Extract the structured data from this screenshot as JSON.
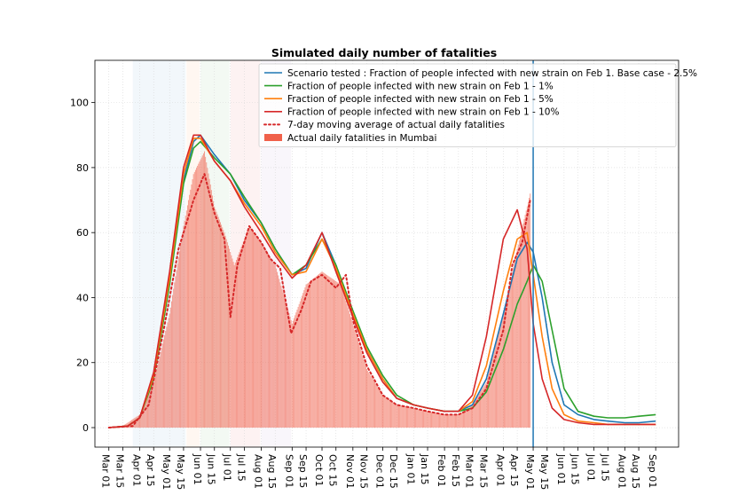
{
  "chart_data": {
    "type": "line",
    "title": "Simulated daily number of fatalities",
    "xlabel": "",
    "ylabel": "",
    "ylim": [
      -6,
      113
    ],
    "xlim": [
      "2020-02-16",
      "2021-09-24"
    ],
    "grid": true,
    "legend_position": "top-right",
    "x_ticks": [
      "Mar 01",
      "Mar 15",
      "Apr 01",
      "Apr 15",
      "May 01",
      "May 15",
      "Jun 01",
      "Jun 15",
      "Jul 01",
      "Jul 15",
      "Aug 01",
      "Aug 15",
      "Sep 01",
      "Sep 15",
      "Oct 01",
      "Oct 15",
      "Nov 01",
      "Nov 15",
      "Dec 01",
      "Dec 15",
      "Jan 01",
      "Jan 15",
      "Feb 01",
      "Feb 15",
      "Mar 01",
      "Mar 15",
      "Apr 01",
      "Apr 15",
      "May 01",
      "May 15",
      "Jun 01",
      "Jun 15",
      "Jul 01",
      "Jul 15",
      "Aug 01",
      "Aug 15",
      "Sep 01"
    ],
    "x_tick_dates": [
      "2020-03-01",
      "2020-03-15",
      "2020-04-01",
      "2020-04-15",
      "2020-05-01",
      "2020-05-15",
      "2020-06-01",
      "2020-06-15",
      "2020-07-01",
      "2020-07-15",
      "2020-08-01",
      "2020-08-15",
      "2020-09-01",
      "2020-09-15",
      "2020-10-01",
      "2020-10-15",
      "2020-11-01",
      "2020-11-15",
      "2020-12-01",
      "2020-12-15",
      "2021-01-01",
      "2021-01-15",
      "2021-02-01",
      "2021-02-15",
      "2021-03-01",
      "2021-03-15",
      "2021-04-01",
      "2021-04-15",
      "2021-05-01",
      "2021-05-15",
      "2021-06-01",
      "2021-06-15",
      "2021-07-01",
      "2021-07-15",
      "2021-08-01",
      "2021-08-15",
      "2021-09-01"
    ],
    "y_ticks": [
      0,
      20,
      40,
      60,
      80,
      100
    ],
    "vertical_line_date": "2021-05-01",
    "vertical_line_color": "#1f77b4",
    "shaded_bands": [
      {
        "start": "2020-03-25",
        "end": "2020-05-17",
        "color": "#1f77b4"
      },
      {
        "start": "2020-05-18",
        "end": "2020-05-31",
        "color": "#ff7f0e"
      },
      {
        "start": "2020-06-01",
        "end": "2020-06-30",
        "color": "#2ca02c"
      },
      {
        "start": "2020-07-01",
        "end": "2020-07-31",
        "color": "#d62728"
      },
      {
        "start": "2020-08-01",
        "end": "2020-08-31",
        "color": "#9467bd"
      }
    ],
    "series": [
      {
        "name": "Scenario tested : Fraction of people infected with new strain on Feb 1. Base case - 2.5%",
        "color": "#1f77b4",
        "style": "solid",
        "points": [
          [
            "2020-03-01",
            0
          ],
          [
            "2020-03-20",
            0.5
          ],
          [
            "2020-04-01",
            3
          ],
          [
            "2020-04-15",
            16
          ],
          [
            "2020-05-01",
            45
          ],
          [
            "2020-05-15",
            76
          ],
          [
            "2020-05-25",
            88
          ],
          [
            "2020-06-01",
            90
          ],
          [
            "2020-06-15",
            84
          ],
          [
            "2020-07-01",
            78
          ],
          [
            "2020-07-15",
            70
          ],
          [
            "2020-08-01",
            63
          ],
          [
            "2020-08-15",
            55
          ],
          [
            "2020-09-01",
            47
          ],
          [
            "2020-09-15",
            49
          ],
          [
            "2020-10-01",
            60
          ],
          [
            "2020-10-15",
            50
          ],
          [
            "2020-11-01",
            35
          ],
          [
            "2020-11-15",
            24
          ],
          [
            "2020-12-01",
            15
          ],
          [
            "2020-12-15",
            9
          ],
          [
            "2021-01-01",
            7
          ],
          [
            "2021-01-15",
            6
          ],
          [
            "2021-02-01",
            5
          ],
          [
            "2021-02-15",
            5
          ],
          [
            "2021-03-01",
            7
          ],
          [
            "2021-03-15",
            15
          ],
          [
            "2021-04-01",
            35
          ],
          [
            "2021-04-15",
            52
          ],
          [
            "2021-04-25",
            57
          ],
          [
            "2021-05-01",
            54
          ],
          [
            "2021-05-10",
            40
          ],
          [
            "2021-05-20",
            20
          ],
          [
            "2021-06-01",
            7
          ],
          [
            "2021-06-15",
            4
          ],
          [
            "2021-07-01",
            2.5
          ],
          [
            "2021-07-15",
            2
          ],
          [
            "2021-08-01",
            1.5
          ],
          [
            "2021-08-15",
            1.5
          ],
          [
            "2021-09-01",
            2
          ]
        ]
      },
      {
        "name": "Fraction of people infected with new strain on Feb 1 - 1%",
        "color": "#2ca02c",
        "style": "solid",
        "points": [
          [
            "2020-03-01",
            0
          ],
          [
            "2020-03-20",
            0.5
          ],
          [
            "2020-04-01",
            3
          ],
          [
            "2020-04-15",
            15
          ],
          [
            "2020-05-01",
            44
          ],
          [
            "2020-05-15",
            75
          ],
          [
            "2020-05-25",
            86
          ],
          [
            "2020-06-01",
            88
          ],
          [
            "2020-06-15",
            83
          ],
          [
            "2020-07-01",
            78
          ],
          [
            "2020-07-15",
            71
          ],
          [
            "2020-08-01",
            63
          ],
          [
            "2020-08-15",
            55
          ],
          [
            "2020-09-01",
            47
          ],
          [
            "2020-09-15",
            50
          ],
          [
            "2020-10-01",
            58
          ],
          [
            "2020-10-15",
            50
          ],
          [
            "2020-11-01",
            36
          ],
          [
            "2020-11-15",
            25
          ],
          [
            "2020-12-01",
            16
          ],
          [
            "2020-12-15",
            10
          ],
          [
            "2021-01-01",
            7
          ],
          [
            "2021-01-15",
            6
          ],
          [
            "2021-02-01",
            5
          ],
          [
            "2021-02-15",
            5
          ],
          [
            "2021-03-01",
            6
          ],
          [
            "2021-03-15",
            11
          ],
          [
            "2021-04-01",
            24
          ],
          [
            "2021-04-15",
            38
          ],
          [
            "2021-04-25",
            45
          ],
          [
            "2021-05-01",
            50
          ],
          [
            "2021-05-10",
            45
          ],
          [
            "2021-05-20",
            30
          ],
          [
            "2021-06-01",
            12
          ],
          [
            "2021-06-15",
            5
          ],
          [
            "2021-07-01",
            3.5
          ],
          [
            "2021-07-15",
            3
          ],
          [
            "2021-08-01",
            3
          ],
          [
            "2021-08-15",
            3.5
          ],
          [
            "2021-09-01",
            4
          ]
        ]
      },
      {
        "name": "Fraction of people infected with new strain on Feb 1 - 5%",
        "color": "#ff7f0e",
        "style": "solid",
        "points": [
          [
            "2020-03-01",
            0
          ],
          [
            "2020-03-20",
            0.5
          ],
          [
            "2020-04-01",
            3
          ],
          [
            "2020-04-15",
            16
          ],
          [
            "2020-05-01",
            46
          ],
          [
            "2020-05-15",
            78
          ],
          [
            "2020-05-25",
            89
          ],
          [
            "2020-06-01",
            89
          ],
          [
            "2020-06-15",
            82
          ],
          [
            "2020-07-01",
            76
          ],
          [
            "2020-07-15",
            69
          ],
          [
            "2020-08-01",
            62
          ],
          [
            "2020-08-15",
            54
          ],
          [
            "2020-09-01",
            47
          ],
          [
            "2020-09-15",
            48
          ],
          [
            "2020-10-01",
            58
          ],
          [
            "2020-10-15",
            49
          ],
          [
            "2020-11-01",
            35
          ],
          [
            "2020-11-15",
            24
          ],
          [
            "2020-12-01",
            15
          ],
          [
            "2020-12-15",
            9
          ],
          [
            "2021-01-01",
            7
          ],
          [
            "2021-01-15",
            6
          ],
          [
            "2021-02-01",
            5
          ],
          [
            "2021-02-15",
            5
          ],
          [
            "2021-03-01",
            8
          ],
          [
            "2021-03-15",
            19
          ],
          [
            "2021-04-01",
            42
          ],
          [
            "2021-04-15",
            58
          ],
          [
            "2021-04-25",
            60
          ],
          [
            "2021-05-01",
            47
          ],
          [
            "2021-05-10",
            28
          ],
          [
            "2021-05-20",
            12
          ],
          [
            "2021-06-01",
            4
          ],
          [
            "2021-06-15",
            2
          ],
          [
            "2021-07-01",
            1.5
          ],
          [
            "2021-07-15",
            1
          ],
          [
            "2021-08-01",
            1
          ],
          [
            "2021-08-15",
            1
          ],
          [
            "2021-09-01",
            1
          ]
        ]
      },
      {
        "name": "Fraction of people infected with new strain on Feb 1 - 10%",
        "color": "#d62728",
        "style": "solid",
        "points": [
          [
            "2020-03-01",
            0
          ],
          [
            "2020-03-20",
            0.5
          ],
          [
            "2020-04-01",
            3
          ],
          [
            "2020-04-15",
            17
          ],
          [
            "2020-05-01",
            48
          ],
          [
            "2020-05-15",
            80
          ],
          [
            "2020-05-25",
            90
          ],
          [
            "2020-06-01",
            90
          ],
          [
            "2020-06-15",
            82
          ],
          [
            "2020-07-01",
            76
          ],
          [
            "2020-07-15",
            68
          ],
          [
            "2020-08-01",
            60
          ],
          [
            "2020-08-15",
            53
          ],
          [
            "2020-09-01",
            46
          ],
          [
            "2020-09-15",
            50
          ],
          [
            "2020-10-01",
            60
          ],
          [
            "2020-10-15",
            48
          ],
          [
            "2020-11-01",
            34
          ],
          [
            "2020-11-15",
            23
          ],
          [
            "2020-12-01",
            14
          ],
          [
            "2020-12-15",
            9
          ],
          [
            "2021-01-01",
            7
          ],
          [
            "2021-01-15",
            6
          ],
          [
            "2021-02-01",
            5
          ],
          [
            "2021-02-15",
            5
          ],
          [
            "2021-03-01",
            10
          ],
          [
            "2021-03-15",
            28
          ],
          [
            "2021-04-01",
            58
          ],
          [
            "2021-04-15",
            67
          ],
          [
            "2021-04-25",
            55
          ],
          [
            "2021-05-01",
            32
          ],
          [
            "2021-05-10",
            15
          ],
          [
            "2021-05-20",
            6
          ],
          [
            "2021-06-01",
            2.5
          ],
          [
            "2021-06-15",
            1.5
          ],
          [
            "2021-07-01",
            1
          ],
          [
            "2021-07-15",
            1
          ],
          [
            "2021-08-01",
            1
          ],
          [
            "2021-08-15",
            1
          ],
          [
            "2021-09-01",
            1
          ]
        ]
      },
      {
        "name": "7-day moving average of actual daily fatalities",
        "color": "#d62728",
        "style": "dotted",
        "points": [
          [
            "2020-03-01",
            0
          ],
          [
            "2020-03-25",
            0.5
          ],
          [
            "2020-04-10",
            7
          ],
          [
            "2020-04-25",
            30
          ],
          [
            "2020-05-10",
            55
          ],
          [
            "2020-05-25",
            70
          ],
          [
            "2020-06-05",
            78
          ],
          [
            "2020-06-15",
            66
          ],
          [
            "2020-06-25",
            58
          ],
          [
            "2020-07-01",
            34
          ],
          [
            "2020-07-08",
            50
          ],
          [
            "2020-07-20",
            62
          ],
          [
            "2020-08-01",
            57
          ],
          [
            "2020-08-10",
            52
          ],
          [
            "2020-08-20",
            49
          ],
          [
            "2020-08-31",
            29
          ],
          [
            "2020-09-10",
            36
          ],
          [
            "2020-09-20",
            45
          ],
          [
            "2020-10-01",
            47
          ],
          [
            "2020-10-15",
            43
          ],
          [
            "2020-10-25",
            47
          ],
          [
            "2020-11-01",
            33
          ],
          [
            "2020-11-15",
            19
          ],
          [
            "2020-12-01",
            10
          ],
          [
            "2020-12-15",
            7
          ],
          [
            "2021-01-01",
            6
          ],
          [
            "2021-01-15",
            5
          ],
          [
            "2021-02-01",
            4
          ],
          [
            "2021-02-15",
            4
          ],
          [
            "2021-03-01",
            6
          ],
          [
            "2021-03-15",
            12
          ],
          [
            "2021-04-01",
            30
          ],
          [
            "2021-04-10",
            50
          ],
          [
            "2021-04-20",
            57
          ],
          [
            "2021-04-28",
            70
          ]
        ]
      },
      {
        "name": "Actual daily fatalities in Mumbai",
        "color": "#f0604a",
        "style": "bar",
        "points": [
          [
            "2020-03-15",
            0.5
          ],
          [
            "2020-04-01",
            4
          ],
          [
            "2020-04-15",
            14
          ],
          [
            "2020-05-01",
            35
          ],
          [
            "2020-05-15",
            62
          ],
          [
            "2020-05-25",
            78
          ],
          [
            "2020-06-05",
            85
          ],
          [
            "2020-06-15",
            68
          ],
          [
            "2020-06-25",
            60
          ],
          [
            "2020-07-05",
            50
          ],
          [
            "2020-07-20",
            62
          ],
          [
            "2020-08-01",
            57
          ],
          [
            "2020-08-15",
            50
          ],
          [
            "2020-09-01",
            32
          ],
          [
            "2020-09-15",
            44
          ],
          [
            "2020-10-01",
            48
          ],
          [
            "2020-10-20",
            44
          ],
          [
            "2020-11-01",
            32
          ],
          [
            "2020-11-15",
            18
          ],
          [
            "2020-12-01",
            10
          ],
          [
            "2020-12-15",
            7
          ],
          [
            "2021-01-01",
            6
          ],
          [
            "2021-01-15",
            5
          ],
          [
            "2021-02-01",
            4
          ],
          [
            "2021-02-15",
            4
          ],
          [
            "2021-03-01",
            7
          ],
          [
            "2021-03-15",
            14
          ],
          [
            "2021-04-01",
            35
          ],
          [
            "2021-04-15",
            55
          ],
          [
            "2021-04-28",
            72
          ]
        ]
      }
    ]
  }
}
